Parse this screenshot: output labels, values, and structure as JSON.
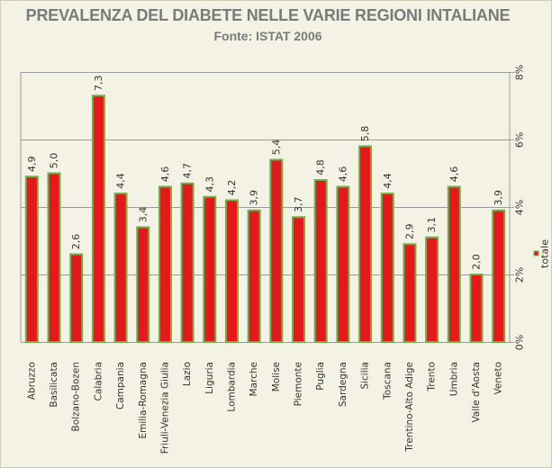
{
  "chart_data": {
    "type": "bar",
    "title": "PREVALENZA DEL DIABETE NELLE VARIE REGIONI INTALIANE",
    "subtitle": "Fonte: ISTAT 2006",
    "categories": [
      "Abruzzo",
      "Basilicata",
      "Bolzano-Bozen",
      "Calabria",
      "Campania",
      "Emilia-Romagna",
      "Friuli-Venezia Giulia",
      "Lazio",
      "Liguria",
      "Lombardia",
      "Marche",
      "Molise",
      "Piemonte",
      "Puglia",
      "Sardegna",
      "Sicilia",
      "Toscana",
      "Trentino-Alto Adige",
      "Trento",
      "Umbria",
      "Valle d'Aosta",
      "Veneto"
    ],
    "series": [
      {
        "name": "totale",
        "values": [
          4.9,
          5.0,
          2.6,
          7.3,
          4.4,
          3.4,
          4.6,
          4.7,
          4.3,
          4.2,
          3.9,
          5.4,
          3.7,
          4.8,
          4.6,
          5.8,
          4.4,
          2.9,
          3.1,
          4.6,
          2.0,
          3.9
        ],
        "labels": [
          "4,9",
          "5,0",
          "2,6",
          "7,3",
          "4,4",
          "3,4",
          "4,6",
          "4,7",
          "4,3",
          "4,2",
          "3,9",
          "5,4",
          "3,7",
          "4,8",
          "4,6",
          "5,8",
          "4,4",
          "2,9",
          "3,1",
          "4,6",
          "2,0",
          "3,9"
        ]
      }
    ],
    "yaxis": {
      "position": "right",
      "ticks": [
        0,
        2,
        4,
        6,
        8
      ],
      "tick_labels": [
        "0%",
        "2%",
        "4%",
        "6%",
        "8%"
      ],
      "ylim": [
        0,
        8
      ]
    },
    "grid": true,
    "legend": "right",
    "colors": {
      "bar_fill": "#e3191c",
      "bar_border": "#6ab34a",
      "grid": "#9a9a9a",
      "text": "#333333",
      "title": "#7a7a7a",
      "background": "#f4f2e4"
    }
  }
}
